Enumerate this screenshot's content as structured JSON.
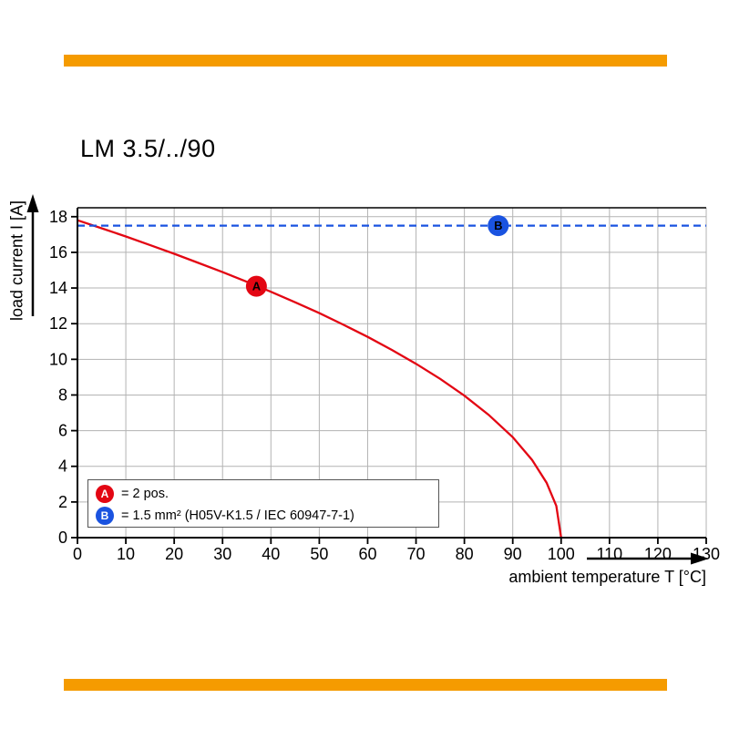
{
  "colors": {
    "brand_orange": "#F59B00",
    "curve_red": "#E30613",
    "line_blue": "#1A53E0",
    "grid_gray": "#B3B3B3"
  },
  "chart_data": {
    "type": "line",
    "title": "LM 3.5/../90",
    "xlabel": "ambient temperature T [°C]",
    "ylabel": "load current I [A]",
    "xlim": [
      0,
      130
    ],
    "ylim": [
      0,
      18.5
    ],
    "grid": true,
    "legend_position": "lower-left-inside",
    "xticks": [
      0,
      10,
      20,
      30,
      40,
      50,
      60,
      70,
      80,
      90,
      100,
      110,
      120,
      130
    ],
    "yticks": [
      0,
      2,
      4,
      6,
      8,
      10,
      12,
      14,
      16,
      18
    ],
    "series": [
      {
        "name": "A",
        "style": "solid",
        "color": "#E30613",
        "points": [
          [
            0,
            17.8
          ],
          [
            5,
            17.35
          ],
          [
            10,
            16.89
          ],
          [
            15,
            16.41
          ],
          [
            20,
            15.92
          ],
          [
            25,
            15.41
          ],
          [
            30,
            14.89
          ],
          [
            35,
            14.35
          ],
          [
            40,
            13.79
          ],
          [
            45,
            13.2
          ],
          [
            50,
            12.59
          ],
          [
            55,
            11.94
          ],
          [
            60,
            11.26
          ],
          [
            65,
            10.53
          ],
          [
            70,
            9.75
          ],
          [
            75,
            8.9
          ],
          [
            80,
            7.96
          ],
          [
            85,
            6.89
          ],
          [
            90,
            5.63
          ],
          [
            94,
            4.36
          ],
          [
            97,
            3.08
          ],
          [
            99,
            1.78
          ],
          [
            100,
            0
          ]
        ]
      },
      {
        "name": "B",
        "style": "dashed",
        "color": "#1A53E0",
        "points": [
          [
            0,
            17.5
          ],
          [
            130,
            17.5
          ]
        ]
      }
    ],
    "markers": [
      {
        "label": "A",
        "x": 37,
        "y": 14.1,
        "color": "#E30613"
      },
      {
        "label": "B",
        "x": 87,
        "y": 17.5,
        "color": "#1A53E0"
      }
    ],
    "legend": [
      {
        "badge": "A",
        "color": "#E30613",
        "text": "= 2 pos."
      },
      {
        "badge": "B",
        "color": "#1A53E0",
        "text": "= 1.5 mm² (H05V-K1.5 / IEC 60947-7-1)"
      }
    ]
  }
}
